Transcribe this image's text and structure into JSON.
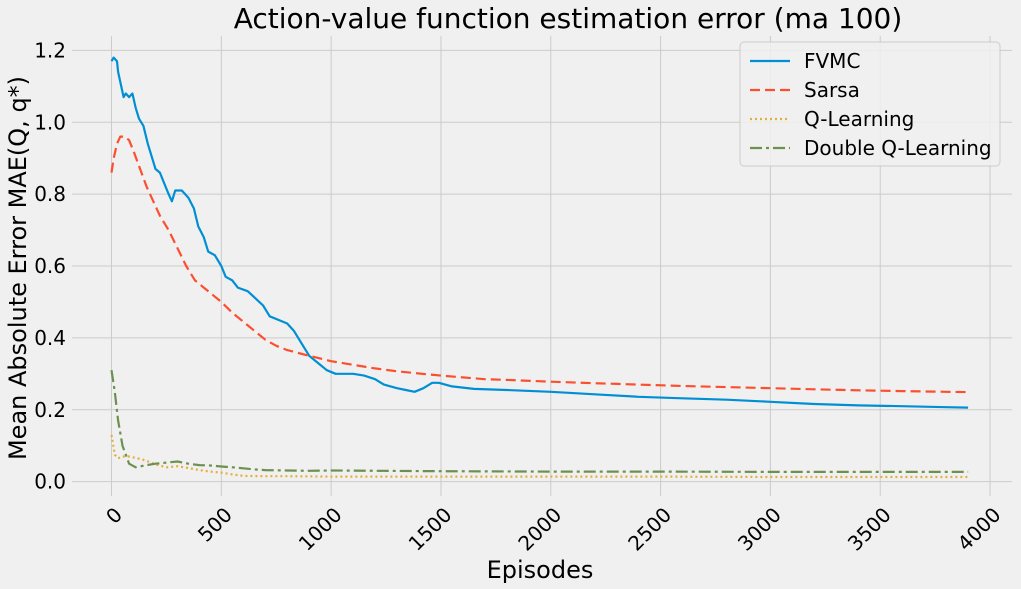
{
  "chart_data": {
    "type": "line",
    "title": "Action-value function estimation error (ma 100)",
    "xlabel": "Episodes",
    "ylabel": "Mean Absolute Error MAE(Q, q*)",
    "xlim": [
      -180,
      4100
    ],
    "ylim": [
      -0.04,
      1.24
    ],
    "xticks": [
      0,
      500,
      1000,
      1500,
      2000,
      2500,
      3000,
      3500,
      4000
    ],
    "yticks": [
      0.0,
      0.2,
      0.4,
      0.6,
      0.8,
      1.0,
      1.2
    ],
    "xtick_labels": [
      "0",
      "500",
      "1000",
      "1500",
      "2000",
      "2500",
      "3000",
      "3500",
      "4000"
    ],
    "ytick_labels": [
      "0.0",
      "0.2",
      "0.4",
      "0.6",
      "0.8",
      "1.0",
      "1.2"
    ],
    "grid": true,
    "legend_position": "top-right",
    "series": [
      {
        "name": "FVMC",
        "color": "#008fd5",
        "dash": "solid",
        "points": [
          [
            0,
            1.17
          ],
          [
            10,
            1.18
          ],
          [
            25,
            1.17
          ],
          [
            30,
            1.14
          ],
          [
            55,
            1.07
          ],
          [
            65,
            1.08
          ],
          [
            80,
            1.07
          ],
          [
            95,
            1.08
          ],
          [
            110,
            1.04
          ],
          [
            125,
            1.01
          ],
          [
            145,
            0.99
          ],
          [
            165,
            0.94
          ],
          [
            185,
            0.9
          ],
          [
            200,
            0.87
          ],
          [
            220,
            0.86
          ],
          [
            240,
            0.83
          ],
          [
            260,
            0.8
          ],
          [
            275,
            0.78
          ],
          [
            290,
            0.81
          ],
          [
            320,
            0.81
          ],
          [
            350,
            0.79
          ],
          [
            375,
            0.76
          ],
          [
            395,
            0.71
          ],
          [
            420,
            0.68
          ],
          [
            440,
            0.64
          ],
          [
            470,
            0.63
          ],
          [
            500,
            0.6
          ],
          [
            520,
            0.57
          ],
          [
            550,
            0.56
          ],
          [
            575,
            0.54
          ],
          [
            620,
            0.53
          ],
          [
            655,
            0.51
          ],
          [
            690,
            0.49
          ],
          [
            720,
            0.46
          ],
          [
            760,
            0.45
          ],
          [
            800,
            0.44
          ],
          [
            830,
            0.42
          ],
          [
            870,
            0.38
          ],
          [
            900,
            0.35
          ],
          [
            940,
            0.33
          ],
          [
            980,
            0.31
          ],
          [
            1020,
            0.3
          ],
          [
            1060,
            0.3
          ],
          [
            1100,
            0.3
          ],
          [
            1150,
            0.295
          ],
          [
            1200,
            0.285
          ],
          [
            1240,
            0.27
          ],
          [
            1300,
            0.26
          ],
          [
            1340,
            0.255
          ],
          [
            1380,
            0.25
          ],
          [
            1420,
            0.26
          ],
          [
            1460,
            0.275
          ],
          [
            1490,
            0.275
          ],
          [
            1550,
            0.265
          ],
          [
            1650,
            0.258
          ],
          [
            1800,
            0.255
          ],
          [
            2000,
            0.25
          ],
          [
            2200,
            0.243
          ],
          [
            2400,
            0.236
          ],
          [
            2600,
            0.232
          ],
          [
            2800,
            0.228
          ],
          [
            3000,
            0.222
          ],
          [
            3200,
            0.216
          ],
          [
            3400,
            0.212
          ],
          [
            3600,
            0.21
          ],
          [
            3800,
            0.207
          ],
          [
            3900,
            0.206
          ]
        ]
      },
      {
        "name": "Sarsa",
        "color": "#fc4f30",
        "dash": "dashed",
        "points": [
          [
            0,
            0.86
          ],
          [
            10,
            0.9
          ],
          [
            25,
            0.94
          ],
          [
            40,
            0.96
          ],
          [
            60,
            0.96
          ],
          [
            80,
            0.95
          ],
          [
            100,
            0.92
          ],
          [
            130,
            0.87
          ],
          [
            160,
            0.82
          ],
          [
            190,
            0.78
          ],
          [
            220,
            0.74
          ],
          [
            260,
            0.7
          ],
          [
            300,
            0.65
          ],
          [
            340,
            0.6
          ],
          [
            380,
            0.56
          ],
          [
            420,
            0.54
          ],
          [
            460,
            0.52
          ],
          [
            500,
            0.5
          ],
          [
            550,
            0.47
          ],
          [
            600,
            0.445
          ],
          [
            650,
            0.42
          ],
          [
            700,
            0.395
          ],
          [
            750,
            0.378
          ],
          [
            800,
            0.366
          ],
          [
            900,
            0.35
          ],
          [
            1000,
            0.335
          ],
          [
            1100,
            0.325
          ],
          [
            1200,
            0.315
          ],
          [
            1300,
            0.307
          ],
          [
            1400,
            0.301
          ],
          [
            1500,
            0.295
          ],
          [
            1600,
            0.29
          ],
          [
            1700,
            0.285
          ],
          [
            1800,
            0.283
          ],
          [
            2000,
            0.278
          ],
          [
            2200,
            0.274
          ],
          [
            2400,
            0.27
          ],
          [
            2600,
            0.266
          ],
          [
            2800,
            0.263
          ],
          [
            3000,
            0.26
          ],
          [
            3200,
            0.257
          ],
          [
            3400,
            0.254
          ],
          [
            3600,
            0.252
          ],
          [
            3800,
            0.25
          ],
          [
            3900,
            0.249
          ]
        ]
      },
      {
        "name": "Q-Learning",
        "color": "#e5ae38",
        "dash": "dotted",
        "points": [
          [
            0,
            0.13
          ],
          [
            15,
            0.075
          ],
          [
            30,
            0.065
          ],
          [
            50,
            0.07
          ],
          [
            80,
            0.07
          ],
          [
            110,
            0.066
          ],
          [
            150,
            0.06
          ],
          [
            200,
            0.048
          ],
          [
            250,
            0.04
          ],
          [
            300,
            0.043
          ],
          [
            350,
            0.038
          ],
          [
            400,
            0.032
          ],
          [
            450,
            0.028
          ],
          [
            500,
            0.025
          ],
          [
            550,
            0.02
          ],
          [
            600,
            0.016
          ],
          [
            700,
            0.015
          ],
          [
            800,
            0.015
          ],
          [
            1000,
            0.014
          ],
          [
            1500,
            0.014
          ],
          [
            2000,
            0.014
          ],
          [
            2500,
            0.014
          ],
          [
            3000,
            0.013
          ],
          [
            3500,
            0.013
          ],
          [
            3900,
            0.013
          ]
        ]
      },
      {
        "name": "Double Q-Learning",
        "color": "#6d904f",
        "dash": "dashdot",
        "points": [
          [
            0,
            0.31
          ],
          [
            15,
            0.25
          ],
          [
            30,
            0.17
          ],
          [
            50,
            0.1
          ],
          [
            80,
            0.05
          ],
          [
            110,
            0.04
          ],
          [
            150,
            0.045
          ],
          [
            200,
            0.05
          ],
          [
            250,
            0.053
          ],
          [
            300,
            0.056
          ],
          [
            350,
            0.05
          ],
          [
            400,
            0.046
          ],
          [
            450,
            0.045
          ],
          [
            500,
            0.042
          ],
          [
            550,
            0.04
          ],
          [
            600,
            0.037
          ],
          [
            650,
            0.034
          ],
          [
            700,
            0.032
          ],
          [
            800,
            0.031
          ],
          [
            900,
            0.03
          ],
          [
            1000,
            0.031
          ],
          [
            1200,
            0.03
          ],
          [
            1500,
            0.029
          ],
          [
            2000,
            0.028
          ],
          [
            2500,
            0.028
          ],
          [
            3000,
            0.027
          ],
          [
            3500,
            0.027
          ],
          [
            3900,
            0.027
          ]
        ]
      }
    ]
  }
}
